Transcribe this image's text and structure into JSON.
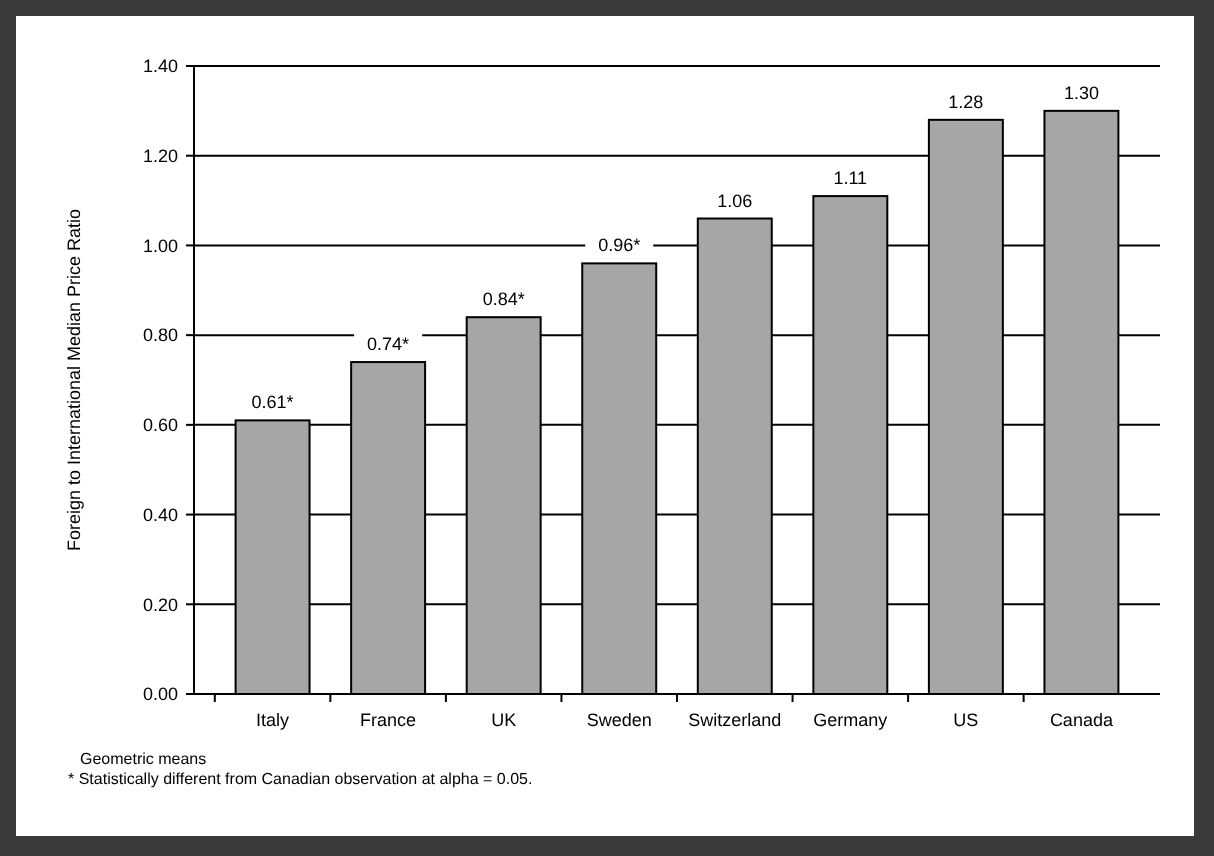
{
  "chart_data": {
    "type": "bar",
    "ylabel": "Foreign to International Median Price Ratio",
    "categories": [
      "Italy",
      "France",
      "UK",
      "Sweden",
      "Switzerland",
      "Germany",
      "US",
      "Canada"
    ],
    "values": [
      0.61,
      0.74,
      0.84,
      0.96,
      1.06,
      1.11,
      1.28,
      1.3
    ],
    "value_labels": [
      "0.61*",
      "0.74*",
      "0.84*",
      "0.96*",
      "1.06",
      "1.11",
      "1.28",
      "1.30"
    ],
    "color": "#a6a6a6",
    "ylim": [
      0,
      1.4
    ],
    "yticks": [
      {
        "value": 0,
        "label": "0.00"
      },
      {
        "value": 0.2,
        "label": "0.20"
      },
      {
        "value": 0.4,
        "label": "0.40"
      },
      {
        "value": 0.6,
        "label": "0.60"
      },
      {
        "value": 0.8,
        "label": "0.80"
      },
      {
        "value": 1,
        "label": "1.00"
      },
      {
        "value": 1.2,
        "label": "1.20"
      },
      {
        "value": 1.4,
        "label": "1.40"
      }
    ],
    "grid": "y",
    "annotations": [
      "Geometric means",
      "* Statistically different from Canadian observation at alpha = 0.05."
    ]
  }
}
